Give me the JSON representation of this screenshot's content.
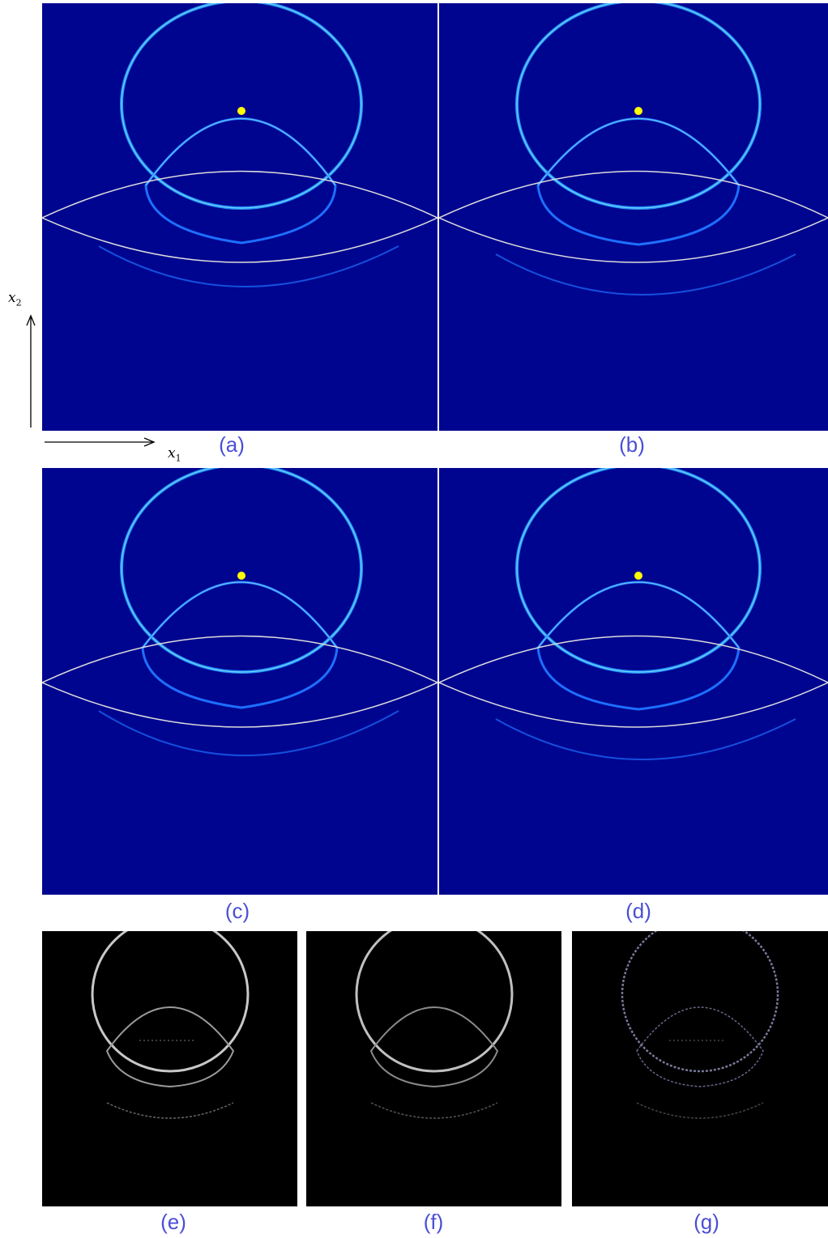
{
  "figure": {
    "axis_x_label": "x",
    "axis_x_sub": "1",
    "axis_y_label": "x",
    "axis_y_sub": "2",
    "panels": [
      {
        "id": "a",
        "caption": "(a)"
      },
      {
        "id": "b",
        "caption": "(b)"
      },
      {
        "id": "c",
        "caption": "(c)"
      },
      {
        "id": "d",
        "caption": "(d)"
      },
      {
        "id": "e",
        "caption": "(e)"
      },
      {
        "id": "f",
        "caption": "(f)"
      },
      {
        "id": "g",
        "caption": "(g)"
      }
    ],
    "colors": {
      "field_background": "#00058f",
      "wavefront": "#1e90ff",
      "wavefront_highlight": "#9ff0e8",
      "interface_line": "#dcdcdc",
      "source_point": "#ffff00",
      "diff_background": "#000000",
      "diff_wavefront": "#c8c8c8",
      "caption": "#4a4fd6"
    }
  }
}
